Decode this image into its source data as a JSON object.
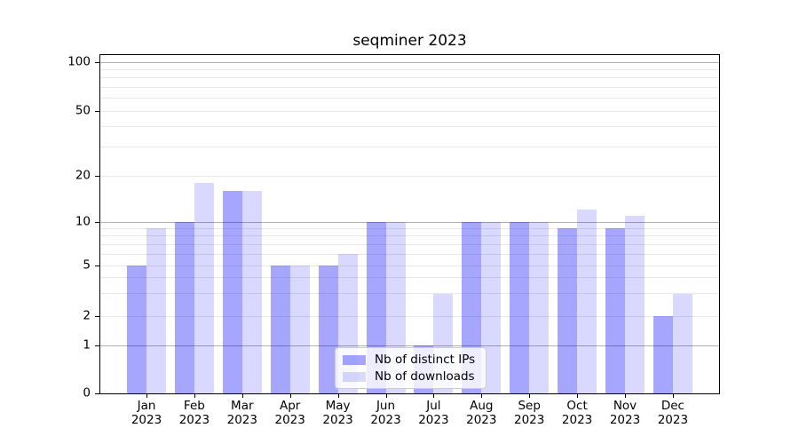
{
  "title": "seqminer 2023",
  "colors": {
    "bar_dark": "rgba(0,0,255,0.35)",
    "bar_light": "rgba(0,0,255,0.15)",
    "grid_major": "#b0b0b0",
    "grid_minor": "#e8e8e8",
    "axis": "#000000",
    "background": "#ffffff",
    "legend_border": "#cccccc"
  },
  "chart_data": {
    "type": "bar",
    "title": "seqminer 2023",
    "categories": [
      "Jan 2023",
      "Feb 2023",
      "Mar 2023",
      "Apr 2023",
      "May 2023",
      "Jun 2023",
      "Jul 2023",
      "Aug 2023",
      "Sep 2023",
      "Oct 2023",
      "Nov 2023",
      "Dec 2023"
    ],
    "series": [
      {
        "name": "Nb of distinct IPs",
        "color": "rgba(0,0,255,0.35)",
        "values": [
          5,
          10,
          16,
          5,
          5,
          10,
          1,
          10,
          10,
          9,
          9,
          2
        ]
      },
      {
        "name": "Nb of downloads",
        "color": "rgba(0,0,255,0.15)",
        "values": [
          9,
          18,
          16,
          5,
          6,
          10,
          3,
          10,
          10,
          12,
          11,
          3
        ]
      }
    ],
    "yticks": [
      0,
      1,
      2,
      5,
      10,
      20,
      50,
      100
    ],
    "ylim": [
      0,
      110
    ],
    "yscale": "log",
    "xlabel": "",
    "ylabel": "",
    "grid": true,
    "legend_position": "lower center inside"
  }
}
